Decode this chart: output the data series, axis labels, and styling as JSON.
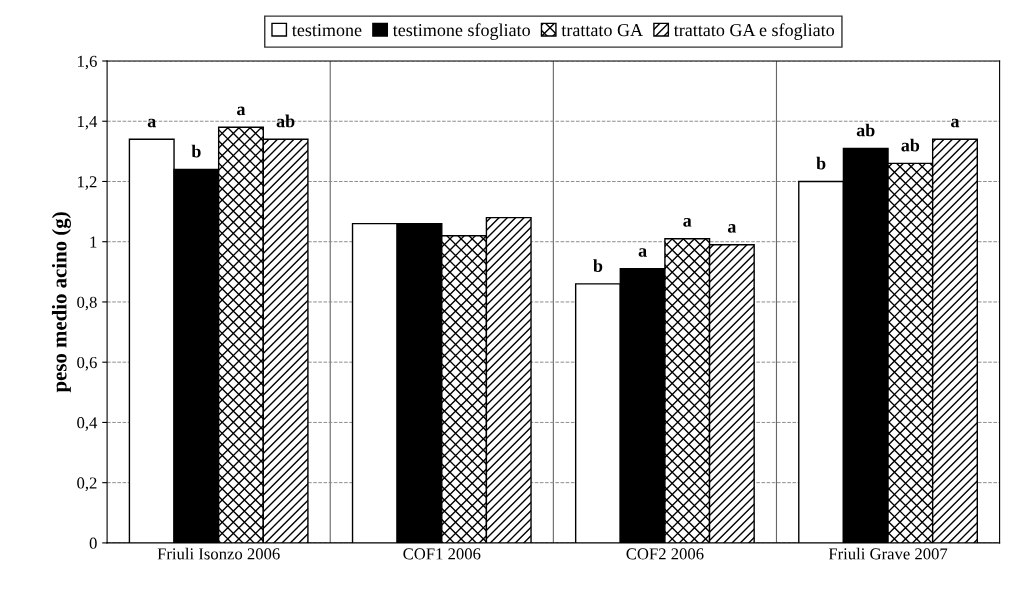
{
  "chart_data": {
    "type": "bar",
    "ylabel": "peso medio acino (g)",
    "categories": [
      "Friuli Isonzo 2006",
      "COF1 2006",
      "COF2 2006",
      "Friuli Grave 2007"
    ],
    "series": [
      {
        "name": "testimone",
        "color": "#ffffff",
        "values": [
          1.34,
          1.06,
          0.86,
          1.2
        ],
        "value_labels": [
          "a",
          null,
          "b",
          "b"
        ]
      },
      {
        "name": "testimone sfogliato",
        "color": "#000000",
        "values": [
          1.24,
          1.06,
          0.91,
          1.31
        ],
        "value_labels": [
          "b",
          null,
          "a",
          "ab"
        ]
      },
      {
        "name": "trattato GA",
        "color": "#000000",
        "values": [
          1.38,
          1.02,
          1.01,
          1.26
        ],
        "value_labels": [
          "a",
          null,
          "a",
          "ab"
        ]
      },
      {
        "name": "trattato GA e sfogliato",
        "color": "#000000",
        "values": [
          1.34,
          1.08,
          0.99,
          1.34
        ],
        "value_labels": [
          "ab",
          null,
          "a",
          "a"
        ]
      }
    ],
    "ylim": [
      0,
      1.6
    ],
    "yticks": [
      0,
      {
        "value": 0.2,
        "label": "0,2"
      },
      {
        "value": 0.4,
        "label": "0,4"
      },
      {
        "value": 0.6,
        "label": "0,6"
      },
      {
        "value": 0.8,
        "label": "0,8"
      },
      1,
      {
        "value": 1.2,
        "label": "1,2"
      },
      {
        "value": 1.4,
        "label": "1,4"
      },
      {
        "value": 1.6,
        "label": "1,6"
      }
    ],
    "grid": "y",
    "legend": "top"
  }
}
